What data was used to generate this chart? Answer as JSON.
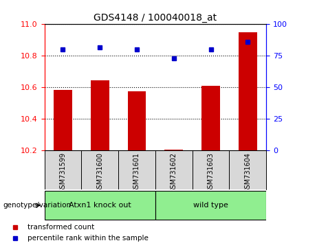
{
  "title": "GDS4148 / 100040018_at",
  "samples": [
    "GSM731599",
    "GSM731600",
    "GSM731601",
    "GSM731602",
    "GSM731603",
    "GSM731604"
  ],
  "red_values": [
    10.585,
    10.645,
    10.578,
    10.205,
    10.61,
    10.95
  ],
  "blue_values": [
    80,
    82,
    80,
    73,
    80,
    86
  ],
  "ylim_left": [
    10.2,
    11.0
  ],
  "ylim_right": [
    0,
    100
  ],
  "yticks_left": [
    10.2,
    10.4,
    10.6,
    10.8,
    11.0
  ],
  "yticks_right": [
    0,
    25,
    50,
    75,
    100
  ],
  "ybase": 10.2,
  "group_defs": [
    {
      "label": "Atxn1 knock out",
      "start": 0,
      "end": 2
    },
    {
      "label": "wild type",
      "start": 3,
      "end": 5
    }
  ],
  "group_label": "genotype/variation",
  "legend_red": "transformed count",
  "legend_blue": "percentile rank within the sample",
  "bar_color": "#cc0000",
  "dot_color": "#0000cc",
  "bg_color": "#d8d8d8",
  "green_color": "#90EE90",
  "plot_bg": "white"
}
